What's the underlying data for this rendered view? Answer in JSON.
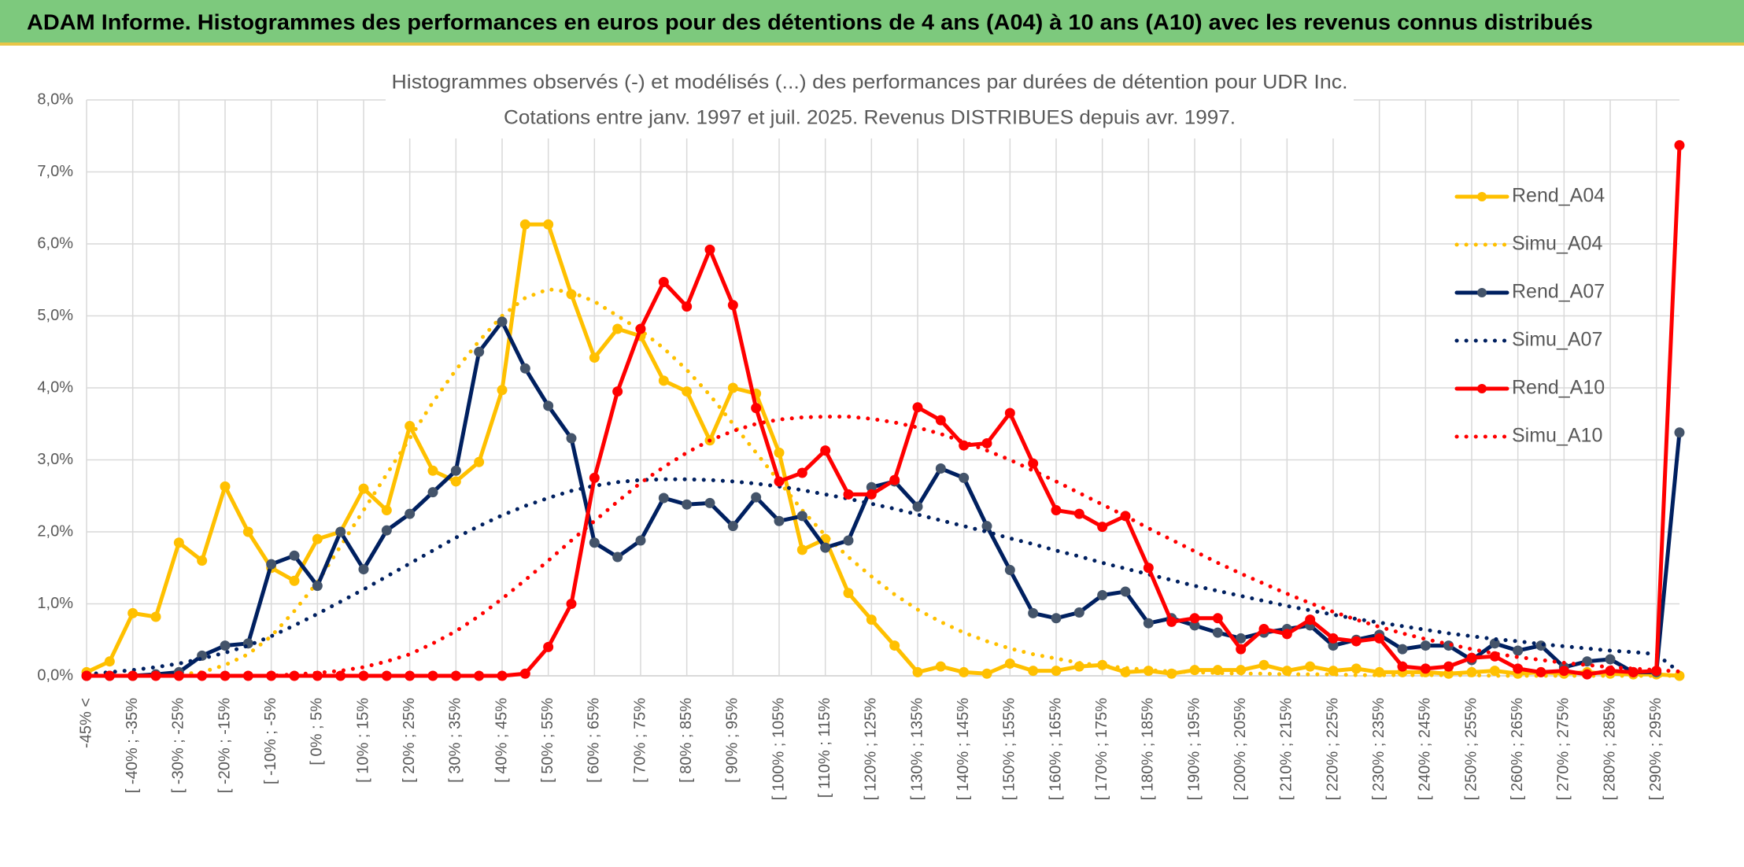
{
  "header": {
    "title": "ADAM Informe. Histogrammes des performances en euros pour des détentions de 4 ans (A04) à 10 ans (A10) avec les revenus connus distribués"
  },
  "chart_data": {
    "type": "line",
    "title": "Histogrammes observés (-) et modélisés (...) des performances par durées de détention pour UDR Inc.",
    "subtitle": "Cotations entre janv. 1997 et juil. 2025. Revenus DISTRIBUES depuis avr. 1997.",
    "categories": [
      "-45% <",
      null,
      "[ -40% ; -35%",
      null,
      "[ -30% ; -25%",
      null,
      "[ -20% ; -15%",
      null,
      "[ -10% ; -5%",
      null,
      "[ 0% ; 5%",
      null,
      "[ 10% ; 15%",
      null,
      "[ 20% ; 25%",
      null,
      "[ 30% ; 35%",
      null,
      "[ 40% ; 45%",
      null,
      "[ 50% ; 55%",
      null,
      "[ 60% ; 65%",
      null,
      "[ 70% ; 75%",
      null,
      "[ 80% ; 85%",
      null,
      "[ 90% ; 95%",
      null,
      "[ 100% ; 105%",
      null,
      "[ 110% ; 115%",
      null,
      "[ 120% ; 125%",
      null,
      "[ 130% ; 135%",
      null,
      "[ 140% ; 145%",
      null,
      "[ 150% ; 155%",
      null,
      "[ 160% ; 165%",
      null,
      "[ 170% ; 175%",
      null,
      "[ 180% ; 185%",
      null,
      "[ 190% ; 195%",
      null,
      "[ 200% ; 205%",
      null,
      "[ 210% ; 215%",
      null,
      "[ 220% ; 225%",
      null,
      "[ 230% ; 235%",
      null,
      "[ 240% ; 245%",
      null,
      "[ 250% ; 255%",
      null,
      "[ 260% ; 265%",
      null,
      "[ 270% ; 275%",
      null,
      "[ 280% ; 285%",
      null,
      "[ 290% ; 295%",
      null
    ],
    "series": [
      {
        "name": "Rend_A04",
        "color": "#FFC000",
        "style": "solid",
        "values": [
          0.05,
          0.2,
          0.87,
          0.82,
          1.85,
          1.6,
          2.63,
          2.0,
          1.5,
          1.32,
          1.9,
          2.0,
          2.6,
          2.3,
          3.47,
          2.85,
          2.7,
          2.97,
          3.97,
          6.27,
          6.27,
          5.3,
          4.42,
          4.82,
          4.72,
          4.1,
          3.95,
          3.27,
          4.0,
          3.92,
          3.1,
          1.75,
          1.9,
          1.15,
          0.78,
          0.42,
          0.05,
          0.13,
          0.05,
          0.03,
          0.17,
          0.07,
          0.07,
          0.13,
          0.15,
          0.05,
          0.07,
          0.03,
          0.08,
          0.08,
          0.08,
          0.15,
          0.07,
          0.13,
          0.07,
          0.1,
          0.05,
          0.05,
          0.05,
          0.03,
          0.05,
          0.07,
          0.03,
          0.05,
          0.03,
          0.05,
          0.03,
          0.02,
          0.02,
          0
        ]
      },
      {
        "name": "Simu_A04",
        "color": "#FFC000",
        "style": "dotted",
        "values": [
          0,
          0,
          0,
          0,
          0.02,
          0.05,
          0.15,
          0.3,
          0.55,
          0.9,
          1.3,
          1.8,
          2.3,
          2.8,
          3.3,
          3.8,
          4.25,
          4.65,
          5.0,
          5.25,
          5.37,
          5.33,
          5.2,
          5.0,
          4.8,
          4.55,
          4.25,
          3.9,
          3.5,
          3.1,
          2.7,
          2.3,
          1.95,
          1.65,
          1.38,
          1.13,
          0.92,
          0.75,
          0.6,
          0.48,
          0.38,
          0.3,
          0.24,
          0.18,
          0.14,
          0.11,
          0.08,
          0.06,
          0.05,
          0.04,
          0.03,
          0.03,
          0.02,
          0.02,
          0.02,
          0.01,
          0.01,
          0.01,
          0.01,
          0.01,
          0.01,
          0,
          0,
          0,
          0,
          0,
          0,
          0,
          0,
          0
        ]
      },
      {
        "name": "Rend_A07",
        "color": "#002060",
        "marker_color": "#44546A",
        "style": "solid",
        "values": [
          0,
          0,
          0,
          0.02,
          0.05,
          0.28,
          0.42,
          0.45,
          1.55,
          1.67,
          1.25,
          2.0,
          1.48,
          2.02,
          2.25,
          2.55,
          2.85,
          4.5,
          4.92,
          4.27,
          3.75,
          3.3,
          1.85,
          1.65,
          1.88,
          2.47,
          2.38,
          2.4,
          2.08,
          2.48,
          2.15,
          2.22,
          1.78,
          1.88,
          2.62,
          2.7,
          2.35,
          2.88,
          2.75,
          2.08,
          1.47,
          0.87,
          0.8,
          0.88,
          1.12,
          1.17,
          0.73,
          0.8,
          0.7,
          0.6,
          0.52,
          0.6,
          0.65,
          0.7,
          0.42,
          0.5,
          0.57,
          0.37,
          0.42,
          0.42,
          0.22,
          0.45,
          0.35,
          0.42,
          0.12,
          0.2,
          0.23,
          0.05,
          0.05,
          3.38
        ]
      },
      {
        "name": "Simu_A07",
        "color": "#002060",
        "style": "dotted",
        "values": [
          0.02,
          0.05,
          0.08,
          0.12,
          0.17,
          0.24,
          0.32,
          0.42,
          0.55,
          0.7,
          0.86,
          1.03,
          1.2,
          1.38,
          1.56,
          1.74,
          1.92,
          2.08,
          2.23,
          2.36,
          2.47,
          2.57,
          2.64,
          2.69,
          2.72,
          2.73,
          2.73,
          2.72,
          2.7,
          2.67,
          2.63,
          2.58,
          2.52,
          2.46,
          2.39,
          2.32,
          2.24,
          2.16,
          2.08,
          2.0,
          1.91,
          1.83,
          1.74,
          1.66,
          1.57,
          1.49,
          1.41,
          1.33,
          1.25,
          1.18,
          1.11,
          1.04,
          0.97,
          0.91,
          0.85,
          0.79,
          0.74,
          0.69,
          0.64,
          0.59,
          0.55,
          0.51,
          0.48,
          0.44,
          0.41,
          0.38,
          0.35,
          0.33,
          0.3,
          0.05
        ]
      },
      {
        "name": "Rend_A10",
        "color": "#FF0000",
        "style": "solid",
        "values": [
          0,
          0,
          0,
          0,
          0,
          0,
          0,
          0,
          0,
          0,
          0,
          0,
          0,
          0,
          0,
          0,
          0,
          0,
          0,
          0.03,
          0.4,
          1.0,
          2.75,
          3.95,
          4.82,
          5.47,
          5.13,
          5.92,
          5.15,
          3.72,
          2.7,
          2.82,
          3.13,
          2.52,
          2.52,
          2.72,
          3.73,
          3.55,
          3.2,
          3.23,
          3.65,
          2.95,
          2.3,
          2.25,
          2.07,
          2.22,
          1.5,
          0.75,
          0.8,
          0.8,
          0.37,
          0.65,
          0.58,
          0.78,
          0.52,
          0.48,
          0.52,
          0.13,
          0.1,
          0.13,
          0.25,
          0.27,
          0.1,
          0.05,
          0.07,
          0.02,
          0.07,
          0.05,
          0.07,
          7.37
        ]
      },
      {
        "name": "Simu_A10",
        "color": "#FF0000",
        "style": "dotted",
        "values": [
          0,
          0,
          0,
          0,
          0,
          0,
          0,
          0,
          0,
          0.02,
          0.04,
          0.07,
          0.12,
          0.2,
          0.3,
          0.45,
          0.62,
          0.83,
          1.07,
          1.33,
          1.6,
          1.88,
          2.15,
          2.42,
          2.68,
          2.9,
          3.1,
          3.27,
          3.4,
          3.5,
          3.56,
          3.59,
          3.6,
          3.6,
          3.57,
          3.52,
          3.45,
          3.36,
          3.25,
          3.13,
          3.0,
          2.85,
          2.7,
          2.54,
          2.38,
          2.22,
          2.05,
          1.89,
          1.73,
          1.57,
          1.42,
          1.28,
          1.14,
          1.01,
          0.89,
          0.78,
          0.68,
          0.59,
          0.51,
          0.44,
          0.37,
          0.31,
          0.26,
          0.22,
          0.18,
          0.15,
          0.12,
          0.1,
          0.08,
          0.06
        ]
      }
    ],
    "ylim": [
      0,
      8
    ],
    "yticks": [
      {
        "value": 0,
        "label": "0,0%"
      },
      {
        "value": 1,
        "label": "1,0%"
      },
      {
        "value": 2,
        "label": "2,0%"
      },
      {
        "value": 3,
        "label": "3,0%"
      },
      {
        "value": 4,
        "label": "4,0%"
      },
      {
        "value": 5,
        "label": "5,0%"
      },
      {
        "value": 6,
        "label": "6,0%"
      },
      {
        "value": 7,
        "label": "7,0%"
      },
      {
        "value": 8,
        "label": "8,0%"
      }
    ],
    "grid": true,
    "legend": "upper right"
  }
}
